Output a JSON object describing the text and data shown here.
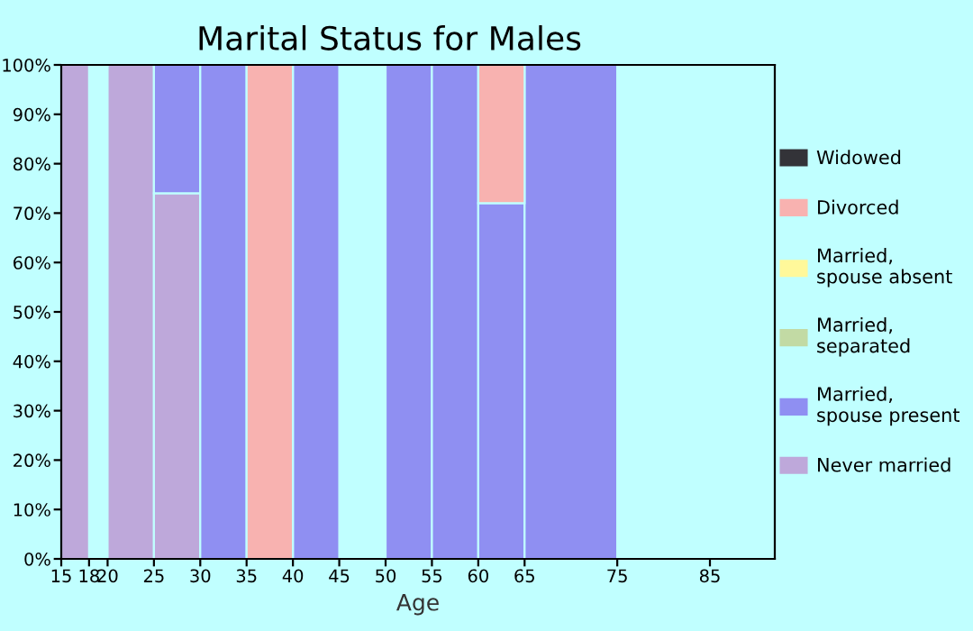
{
  "chart_data": {
    "type": "bar",
    "stacked": true,
    "title": "Marital Status for Males",
    "xlabel": "Age",
    "x": [
      16.5,
      19,
      22.5,
      27.5,
      32.5,
      37.5,
      42.5,
      47.5,
      52.5,
      57.5,
      62.5,
      70
    ],
    "xlim": [
      15,
      92
    ],
    "xticks": [
      15,
      18,
      20,
      25,
      30,
      35,
      40,
      45,
      50,
      55,
      60,
      65,
      75,
      85
    ],
    "ylim": [
      0,
      100
    ],
    "yticks": [
      {
        "value": 0,
        "label": "0%"
      },
      {
        "value": 10,
        "label": "10%"
      },
      {
        "value": 20,
        "label": "20%"
      },
      {
        "value": 30,
        "label": "30%"
      },
      {
        "value": 40,
        "label": "40%"
      },
      {
        "value": 50,
        "label": "50%"
      },
      {
        "value": 60,
        "label": "60%"
      },
      {
        "value": 70,
        "label": "70%"
      },
      {
        "value": 80,
        "label": "80%"
      },
      {
        "value": 90,
        "label": "90%"
      },
      {
        "value": 100,
        "label": "100%"
      }
    ],
    "legend": "right",
    "series": [
      {
        "name": "Never married",
        "color": "#bea8da",
        "values": [
          100,
          null,
          100,
          74,
          null,
          null,
          null,
          null,
          null,
          null,
          null,
          null
        ]
      },
      {
        "name": "Married,\nspouse present",
        "color": "#8f8ff2",
        "values": [
          null,
          null,
          null,
          26,
          100,
          null,
          100,
          null,
          100,
          100,
          72,
          100
        ]
      },
      {
        "name": "Married,\nseparated",
        "color": "#c2daa4",
        "values": [
          null,
          null,
          null,
          null,
          null,
          null,
          null,
          null,
          null,
          null,
          null,
          null
        ]
      },
      {
        "name": "Married,\nspouse absent",
        "color": "#fff89a",
        "values": [
          null,
          null,
          null,
          null,
          null,
          null,
          null,
          null,
          null,
          null,
          null,
          null
        ]
      },
      {
        "name": "Divorced",
        "color": "#f8b2b0",
        "values": [
          null,
          null,
          null,
          null,
          null,
          100,
          null,
          null,
          null,
          null,
          28,
          null
        ]
      },
      {
        "name": "Widowed",
        "color": "#333338",
        "values": [
          null,
          null,
          null,
          null,
          null,
          null,
          null,
          null,
          null,
          null,
          null,
          null
        ]
      }
    ]
  }
}
